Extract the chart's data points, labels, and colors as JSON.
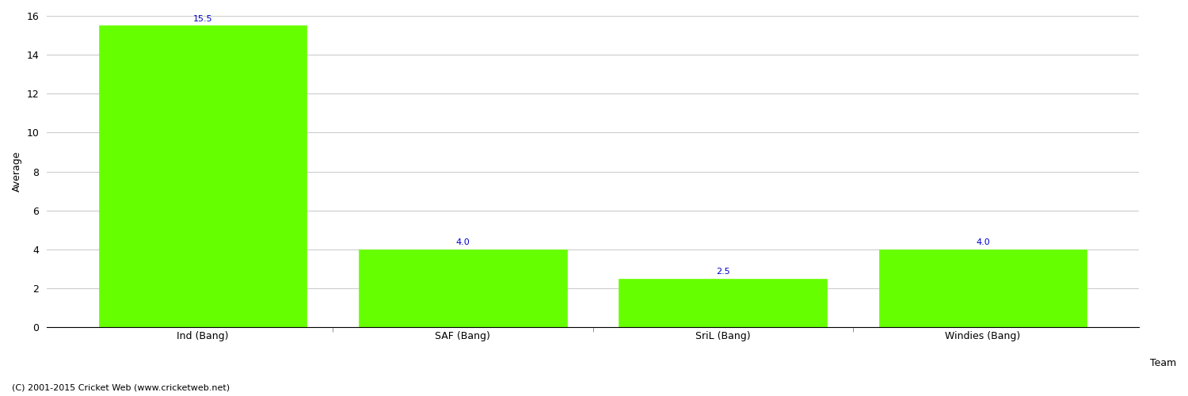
{
  "categories": [
    "Ind (Bang)",
    "SAF (Bang)",
    "SriL (Bang)",
    "Windies (Bang)"
  ],
  "values": [
    15.5,
    4.0,
    2.5,
    4.0
  ],
  "bar_color": "#66ff00",
  "bar_edge_color": "#66ff00",
  "value_color": "#0000cc",
  "ylabel": "Average",
  "xlabel": "Team",
  "ylim": [
    0,
    16
  ],
  "yticks": [
    0,
    2,
    4,
    6,
    8,
    10,
    12,
    14,
    16
  ],
  "grid_color": "#cccccc",
  "background_color": "#ffffff",
  "fig_bg_color": "#ffffff",
  "footer_text": "(C) 2001-2015 Cricket Web (www.cricketweb.net)",
  "value_fontsize": 8,
  "label_fontsize": 9,
  "ylabel_fontsize": 9,
  "xlabel_fontsize": 9,
  "footer_fontsize": 8,
  "bar_width": 0.8
}
